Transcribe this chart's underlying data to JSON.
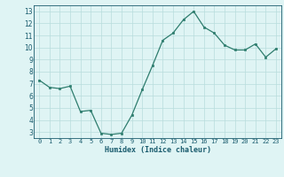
{
  "x": [
    0,
    1,
    2,
    3,
    4,
    5,
    6,
    7,
    8,
    9,
    10,
    11,
    12,
    13,
    14,
    15,
    16,
    17,
    18,
    19,
    20,
    21,
    22,
    23
  ],
  "y": [
    7.3,
    6.7,
    6.6,
    6.8,
    4.7,
    4.8,
    2.9,
    2.8,
    2.9,
    4.4,
    6.5,
    8.5,
    10.6,
    11.2,
    12.3,
    13.0,
    11.7,
    11.2,
    10.2,
    9.8,
    9.8,
    10.3,
    9.2,
    9.9
  ],
  "xlabel": "Humidex (Indice chaleur)",
  "xlim": [
    -0.5,
    23.5
  ],
  "ylim": [
    2.5,
    13.5
  ],
  "yticks": [
    3,
    4,
    5,
    6,
    7,
    8,
    9,
    10,
    11,
    12,
    13
  ],
  "xticks": [
    0,
    1,
    2,
    3,
    4,
    5,
    6,
    7,
    8,
    9,
    10,
    11,
    12,
    13,
    14,
    15,
    16,
    17,
    18,
    19,
    20,
    21,
    22,
    23
  ],
  "line_color": "#2e7d6e",
  "marker_color": "#2e7d6e",
  "bg_color": "#dff4f4",
  "grid_color": "#b8dcdc",
  "label_color": "#1a5c6e",
  "tick_color": "#1a5c6e",
  "xlabel_fontsize": 6.0,
  "tick_fontsize_x": 5.0,
  "tick_fontsize_y": 5.5
}
